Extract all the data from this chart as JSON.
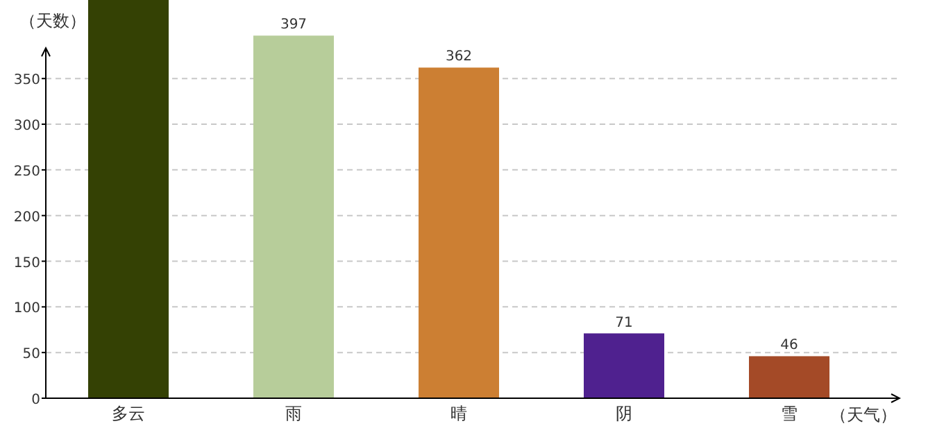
{
  "chart_data": {
    "type": "bar",
    "xlabel": "（天气）",
    "ylabel": "（天数）",
    "categories": [
      "多云",
      "雨",
      "晴",
      "阴",
      "雪"
    ],
    "values": [
      436,
      397,
      362,
      71,
      46
    ],
    "colors": [
      "#344104",
      "#b7cd9a",
      "#cc7f33",
      "#4f218f",
      "#a44a27"
    ],
    "value_labels": [
      null,
      "397",
      "362",
      "71",
      "46"
    ],
    "ylim": [
      0,
      436
    ],
    "yticks": [
      0,
      50,
      100,
      150,
      200,
      250,
      300,
      350
    ],
    "grid": "y"
  }
}
